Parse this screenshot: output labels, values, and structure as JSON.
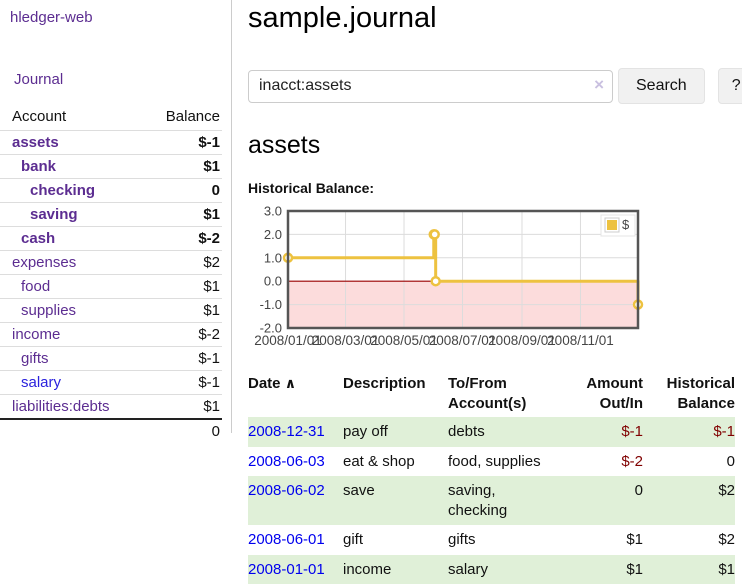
{
  "sidebar": {
    "app_title": "hledger-web",
    "journal_link": "Journal",
    "accounts": {
      "header_account": "Account",
      "header_balance": "Balance",
      "rows": [
        {
          "name": "assets",
          "depth": 1,
          "bold": true,
          "balance": "$-1",
          "negative": "strong"
        },
        {
          "name": "bank",
          "depth": 2,
          "bold": true,
          "balance": "$1"
        },
        {
          "name": "checking",
          "depth": 3,
          "bold": true,
          "balance": "0"
        },
        {
          "name": "saving",
          "depth": 3,
          "bold": true,
          "balance": "$1"
        },
        {
          "name": "cash",
          "depth": 2,
          "bold": true,
          "balance": "$-2",
          "negative": "strong"
        },
        {
          "name": "expenses",
          "depth": 1,
          "bold": false,
          "balance": "$2"
        },
        {
          "name": "food",
          "depth": 2,
          "bold": false,
          "balance": "$1"
        },
        {
          "name": "supplies",
          "depth": 2,
          "bold": false,
          "balance": "$1"
        },
        {
          "name": "income",
          "depth": 1,
          "bold": false,
          "balance": "$-2",
          "negative": "soft"
        },
        {
          "name": "gifts",
          "depth": 2,
          "bold": false,
          "balance": "$-1",
          "negative": "soft"
        },
        {
          "name": "salary",
          "depth": 2,
          "bold": false,
          "balance": "$-1",
          "negative": "soft",
          "link_color": "blue"
        },
        {
          "name": "liabilities:debts",
          "depth": 1,
          "bold": false,
          "balance": "$1"
        }
      ],
      "total": "0"
    }
  },
  "main": {
    "title": "sample.journal",
    "search": {
      "value": "inacct:assets",
      "clear_icon": "×",
      "button_label": "Search",
      "help_label": "?"
    },
    "account_heading": "assets",
    "chart_label": "Historical Balance:"
  },
  "chart_data": {
    "type": "line",
    "title": "Historical Balance",
    "steps": true,
    "series": [
      {
        "name": "$",
        "color": "#edc240",
        "points": [
          [
            "2008-01-01",
            1
          ],
          [
            "2008-06-01",
            2
          ],
          [
            "2008-06-02",
            2
          ],
          [
            "2008-06-03",
            0
          ],
          [
            "2008-12-31",
            -1
          ]
        ]
      }
    ],
    "x_range": [
      "2008-01-01",
      "2008-12-31"
    ],
    "x_ticks": [
      "2008/01/01",
      "2008/03/01",
      "2008/05/01",
      "2008/07/01",
      "2008/09/01",
      "2008/11/01"
    ],
    "y_ticks": [
      3.0,
      2.0,
      1.0,
      0.0,
      -1.0,
      -2.0
    ],
    "ylim": [
      -2,
      3
    ],
    "grid": true,
    "legend_position": "top-right",
    "negative_region": {
      "fill": "#fcdcdc",
      "zero_line_color": "#990000"
    }
  },
  "register": {
    "headers": {
      "date": "Date",
      "sort_icon": "∧",
      "description": "Description",
      "accounts_line1": "To/From",
      "accounts_line2": "Account(s)",
      "amount_line1": "Amount",
      "amount_line2": "Out/In",
      "balance_line1": "Historical",
      "balance_line2": "Balance"
    },
    "rows": [
      {
        "date": "2008-12-31",
        "description": "pay off",
        "accounts": "debts",
        "amount": "$-1",
        "amount_negative": true,
        "balance": "$-1",
        "balance_negative": true
      },
      {
        "date": "2008-06-03",
        "description": "eat & shop",
        "accounts": "food, supplies",
        "amount": "$-2",
        "amount_negative": true,
        "balance": "0",
        "balance_negative": false
      },
      {
        "date": "2008-06-02",
        "description": "save",
        "accounts": "saving, checking",
        "amount": "0",
        "amount_negative": false,
        "balance": "$2",
        "balance_negative": false
      },
      {
        "date": "2008-06-01",
        "description": "gift",
        "accounts": "gifts",
        "amount": "$1",
        "amount_negative": false,
        "balance": "$2",
        "balance_negative": false
      },
      {
        "date": "2008-01-01",
        "description": "income",
        "accounts": "salary",
        "amount": "$1",
        "amount_negative": false,
        "balance": "$1",
        "balance_negative": false
      }
    ]
  },
  "colors": {
    "link_purple": "#5c2d91",
    "link_blue": "#2b22dd",
    "date_link_blue": "#0000ee",
    "negative_strong": "#800000",
    "negative_soft": "#b97676",
    "row_stripe_green": "#e0f0d8",
    "series_gold": "#edc240",
    "negative_zone_pink": "#fcdcdc",
    "zero_line_red": "#990000"
  }
}
